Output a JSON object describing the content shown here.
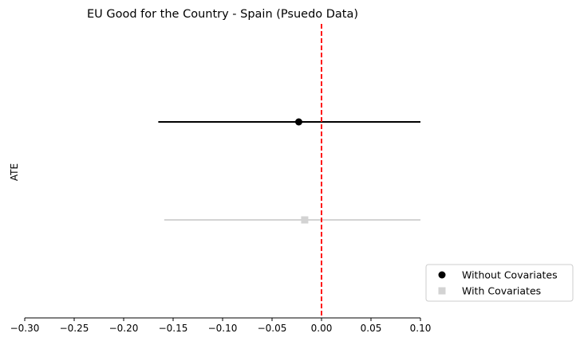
{
  "chart_data": {
    "type": "errorbar",
    "title": "EU Good for the Country - Spain (Psuedo Data)",
    "xlabel": "",
    "ylabel": "ATE",
    "xlim": [
      -0.3,
      0.1
    ],
    "xticks": [
      -0.3,
      -0.25,
      -0.2,
      -0.15,
      -0.1,
      -0.05,
      0.0,
      0.05,
      0.1
    ],
    "xtick_labels": [
      "−0.30",
      "−0.25",
      "−0.20",
      "−0.15",
      "−0.10",
      "−0.05",
      "0.00",
      "0.05",
      "0.10"
    ],
    "reference_line": {
      "x": 0.0,
      "style": "dashed",
      "color": "#ff0000"
    },
    "legend_position": "outside-lower-right",
    "series": [
      {
        "name": "Without Covariates",
        "estimate": -0.023,
        "ci_low": -0.165,
        "ci_high": 0.1,
        "marker": "circle",
        "color": "#000000"
      },
      {
        "name": "With Covariates",
        "estimate": -0.017,
        "ci_low": -0.159,
        "ci_high": 0.1,
        "marker": "square",
        "color": "#d3d3d3"
      }
    ]
  }
}
